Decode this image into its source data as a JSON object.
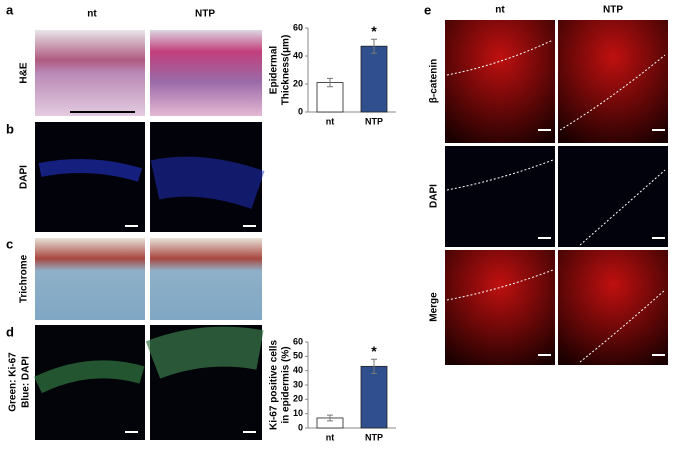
{
  "left": {
    "columns": [
      "nt",
      "NTP"
    ],
    "panels": [
      {
        "letter": "a",
        "label": [
          "H&E"
        ]
      },
      {
        "letter": "b",
        "label": [
          "DAPI"
        ]
      },
      {
        "letter": "c",
        "label": [
          "Trichrome"
        ]
      },
      {
        "letter": "d",
        "label": [
          "Green: Ki-67",
          "Blue: DAPI"
        ]
      }
    ]
  },
  "right": {
    "letter": "e",
    "columns": [
      "nt",
      "NTP"
    ],
    "rows": [
      "β-catenin",
      "DAPI",
      "Merge"
    ]
  },
  "chart_data": [
    {
      "type": "bar",
      "ylabel": [
        "Epidermal",
        "Thickness(μm)"
      ],
      "categories": [
        "nt",
        "NTP"
      ],
      "values": [
        21,
        47
      ],
      "errors": [
        3,
        5
      ],
      "colors": [
        "#ffffff",
        "#2f4f8f"
      ],
      "annotation": "*",
      "ylim": [
        0,
        60
      ],
      "yticks": [
        0,
        20,
        40,
        60
      ]
    },
    {
      "type": "bar",
      "ylabel": [
        "Ki-67 positive cells",
        "in epidermis (%)"
      ],
      "categories": [
        "nt",
        "NTP"
      ],
      "values": [
        7,
        43
      ],
      "errors": [
        2,
        5
      ],
      "colors": [
        "#ffffff",
        "#2f4f8f"
      ],
      "annotation": "*",
      "ylim": [
        0,
        60
      ],
      "yticks": [
        0,
        10,
        20,
        30,
        40,
        50,
        60
      ]
    }
  ]
}
